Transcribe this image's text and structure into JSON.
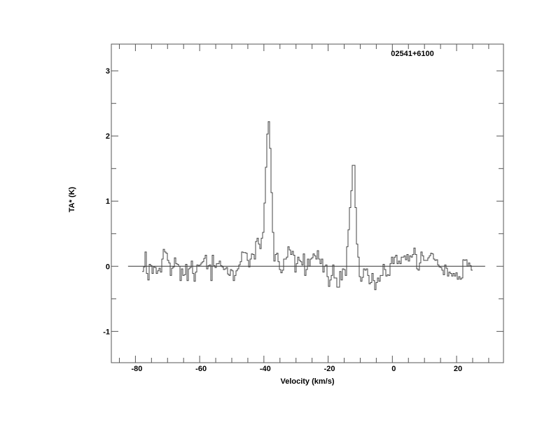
{
  "chart_data": {
    "type": "line",
    "style": "histogram-step",
    "annotation": "02541+6100",
    "xlabel": "Velocity (km/s)",
    "ylabel": "TA* (K)",
    "xlim": [
      -87.5,
      34.6
    ],
    "ylim": [
      -1.48,
      3.41
    ],
    "x_ticks": [
      -80,
      -60,
      -40,
      -20,
      0,
      20
    ],
    "x_tick_labels": [
      "-80",
      "-60",
      "-40",
      "-20",
      "0",
      "20"
    ],
    "x_minor_step": 5,
    "y_ticks": [
      -1,
      0,
      1,
      2,
      3
    ],
    "y_tick_labels": [
      "-1",
      "0",
      "1",
      "2",
      "3"
    ],
    "y_minor_step": 0.5,
    "grid": false,
    "baseline": {
      "y": 0,
      "x_range": [
        -82.3,
        28.9
      ]
    },
    "line_color": "#000000",
    "series": [
      {
        "velocity_start": -77.9,
        "channel_width": 0.436,
        "values": [
          -0.08,
          -0.01,
          0.22,
          -0.11,
          -0.21,
          0.03,
          0.01,
          -0.11,
          -0.01,
          -0.02,
          -0.11,
          -0.07,
          -0.03,
          -0.09,
          0.11,
          0.26,
          0.22,
          0.2,
          0.09,
          0.05,
          -0.14,
          -0.03,
          -0.01,
          0.13,
          0.04,
          0.03,
          0,
          -0.22,
          -0.04,
          -0.14,
          -0.13,
          0.03,
          -0.22,
          -0.04,
          -0.02,
          0.08,
          -0.11,
          -0.23,
          -0.09,
          0.02,
          0.01,
          0.02,
          0.05,
          0.07,
          0.12,
          0.17,
          -0.04,
          0.01,
          0.02,
          -0.22,
          0.17,
          0.01,
          -0.02,
          0.04,
          0.04,
          0.08,
          0.01,
          -0.01,
          -0.05,
          -0.04,
          -0.02,
          -0.12,
          -0.14,
          -0.05,
          -0.07,
          -0.22,
          -0.14,
          -0.07,
          -0.04,
          0.02,
          0.07,
          0.22,
          0.21,
          0.21,
          0.2,
          0.09,
          -0.01,
          0.11,
          0.19,
          0.18,
          0.11,
          0.38,
          0.43,
          0.34,
          0.27,
          0.43,
          0.52,
          0.97,
          1.52,
          2.03,
          2.22,
          1.81,
          1.13,
          0.52,
          0.08,
          0.18,
          0.2,
          0.07,
          -0.05,
          -0.1,
          -0.06,
          0.11,
          0.11,
          0.14,
          0.3,
          0.25,
          0.18,
          0.23,
          0.17,
          -0.09,
          0.04,
          0.14,
          0.09,
          0.07,
          0.02,
          0.19,
          -0.14,
          -0.05,
          0.11,
          0,
          0.11,
          0.13,
          0.19,
          0.16,
          0.11,
          0.24,
          0.11,
          0.04,
          0.11,
          -0.09,
          0,
          0.02,
          -0.16,
          -0.31,
          -0.21,
          -0.14,
          0.02,
          -0.18,
          -0.18,
          -0.32,
          -0.32,
          -0.08,
          -0.21,
          -0.04,
          -0.05,
          -0.14,
          0.3,
          0.56,
          0.9,
          1.16,
          1.55,
          1.55,
          0.9,
          0.34,
          0.14,
          -0.16,
          -0.23,
          -0.17,
          -0.04,
          -0.06,
          -0.04,
          -0.14,
          -0.27,
          -0.25,
          -0.11,
          -0.22,
          -0.36,
          -0.25,
          -0.18,
          -0.23,
          -0.14,
          -0.14,
          0.03,
          -0.05,
          -0.15,
          -0.13,
          -0.14,
          0.04,
          0.14,
          0.04,
          0.14,
          0.17,
          0.04,
          0.08,
          0.04,
          0.14,
          0.14,
          0.16,
          0.1,
          0.18,
          0.08,
          0.16,
          0.14,
          0.18,
          0.28,
          0.18,
          -0.04,
          -0.06,
          0.05,
          0.22,
          0.16,
          0.09,
          0.09,
          0.09,
          0.13,
          0.16,
          0.2,
          0.19,
          0.11,
          0.09,
          0.1,
          0.02,
          -0.01,
          -0.02,
          -0.06,
          -0.13,
          0.02,
          -0.03,
          -0.15,
          -0.09,
          -0.11,
          -0.15,
          -0.11,
          -0.15,
          -0.1,
          -0.2,
          -0.16,
          -0.2,
          -0.18,
          0.1,
          0.09,
          0.1,
          0,
          0.05,
          0.01,
          -0.06
        ]
      }
    ]
  }
}
